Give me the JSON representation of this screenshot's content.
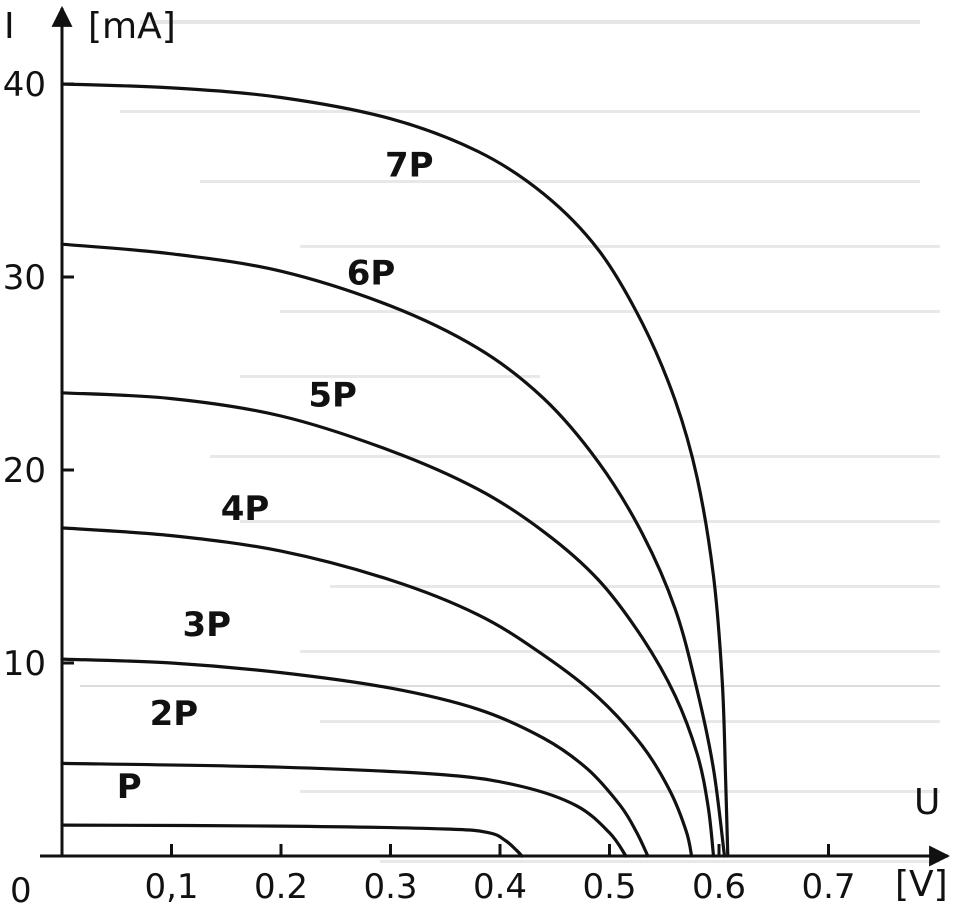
{
  "chart_data": {
    "type": "line",
    "title": "",
    "ylabel": "I",
    "yunit": "[mA]",
    "xlabel": "U",
    "xunit": "[V]",
    "xlim": [
      0,
      0.8
    ],
    "ylim": [
      0,
      44
    ],
    "origin_label": "0",
    "xticks": [
      0.1,
      0.2,
      0.3,
      0.4,
      0.5,
      0.6,
      0.7
    ],
    "xtick_labels": [
      "0,1",
      "0.2",
      "0.3",
      "0.4",
      "0.5",
      "0.6",
      "0.7"
    ],
    "yticks": [
      10,
      20,
      30,
      40
    ],
    "ytick_labels": [
      "10",
      "20",
      "30",
      "40"
    ],
    "series": [
      {
        "name": "P",
        "label_at": [
          0.05,
          3.0
        ],
        "points": [
          [
            0,
            1.6
          ],
          [
            0.2,
            1.55
          ],
          [
            0.35,
            1.4
          ],
          [
            0.39,
            1.2
          ],
          [
            0.405,
            0.8
          ],
          [
            0.415,
            0.3
          ],
          [
            0.42,
            0
          ]
        ]
      },
      {
        "name": "2P",
        "label_at": [
          0.08,
          6.8
        ],
        "points": [
          [
            0,
            4.8
          ],
          [
            0.2,
            4.6
          ],
          [
            0.35,
            4.2
          ],
          [
            0.42,
            3.6
          ],
          [
            0.47,
            2.6
          ],
          [
            0.5,
            1.2
          ],
          [
            0.515,
            0
          ]
        ]
      },
      {
        "name": "3P",
        "label_at": [
          0.11,
          11.4
        ],
        "points": [
          [
            0,
            10.2
          ],
          [
            0.1,
            10
          ],
          [
            0.2,
            9.5
          ],
          [
            0.3,
            8.7
          ],
          [
            0.38,
            7.6
          ],
          [
            0.44,
            6.1
          ],
          [
            0.48,
            4.5
          ],
          [
            0.51,
            2.6
          ],
          [
            0.525,
            1.2
          ],
          [
            0.535,
            0
          ]
        ]
      },
      {
        "name": "4P",
        "label_at": [
          0.145,
          17.4
        ],
        "points": [
          [
            0,
            17
          ],
          [
            0.1,
            16.6
          ],
          [
            0.2,
            15.8
          ],
          [
            0.3,
            14.3
          ],
          [
            0.38,
            12.5
          ],
          [
            0.44,
            10.4
          ],
          [
            0.49,
            8.2
          ],
          [
            0.53,
            5.7
          ],
          [
            0.555,
            3.4
          ],
          [
            0.57,
            1.3
          ],
          [
            0.575,
            0
          ]
        ]
      },
      {
        "name": "5P",
        "label_at": [
          0.225,
          23.3
        ],
        "points": [
          [
            0,
            24
          ],
          [
            0.1,
            23.7
          ],
          [
            0.2,
            22.8
          ],
          [
            0.3,
            21
          ],
          [
            0.38,
            19
          ],
          [
            0.44,
            16.8
          ],
          [
            0.49,
            14.3
          ],
          [
            0.53,
            11.3
          ],
          [
            0.56,
            8.3
          ],
          [
            0.58,
            5.3
          ],
          [
            0.59,
            2.6
          ],
          [
            0.595,
            0
          ]
        ]
      },
      {
        "name": "6P",
        "label_at": [
          0.26,
          29.6
        ],
        "points": [
          [
            0,
            31.7
          ],
          [
            0.1,
            31.2
          ],
          [
            0.2,
            30.3
          ],
          [
            0.3,
            28.5
          ],
          [
            0.38,
            26.3
          ],
          [
            0.44,
            23.7
          ],
          [
            0.49,
            20.4
          ],
          [
            0.53,
            16.7
          ],
          [
            0.56,
            12.8
          ],
          [
            0.58,
            8.6
          ],
          [
            0.595,
            4.5
          ],
          [
            0.605,
            0
          ]
        ]
      },
      {
        "name": "7P",
        "label_at": [
          0.295,
          35.2
        ],
        "points": [
          [
            0,
            40
          ],
          [
            0.1,
            39.8
          ],
          [
            0.2,
            39.3
          ],
          [
            0.3,
            38.2
          ],
          [
            0.38,
            36.5
          ],
          [
            0.44,
            34.3
          ],
          [
            0.49,
            31.4
          ],
          [
            0.53,
            27.6
          ],
          [
            0.56,
            23.6
          ],
          [
            0.58,
            19.6
          ],
          [
            0.595,
            14.5
          ],
          [
            0.603,
            9
          ],
          [
            0.606,
            4
          ],
          [
            0.608,
            0
          ]
        ]
      }
    ]
  }
}
